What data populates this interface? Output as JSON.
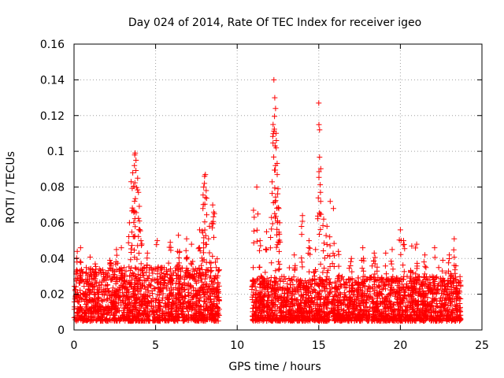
{
  "chart_data": {
    "type": "scatter",
    "title": "Day 024 of 2014, Rate Of TEC Index for receiver igeo",
    "xlabel": "GPS time / hours",
    "ylabel": "ROTI / TECUs",
    "xlim": [
      0,
      25
    ],
    "ylim": [
      0,
      0.16
    ],
    "grid": true,
    "marker": "+",
    "x_ticks": [
      0,
      5,
      10,
      15,
      20,
      25
    ],
    "x_tick_labels": [
      "0",
      "5",
      "10",
      "15",
      "20",
      "25"
    ],
    "y_ticks": [
      0,
      0.02,
      0.04,
      0.06,
      0.08,
      0.1,
      0.12,
      0.14,
      0.16
    ],
    "y_tick_labels": [
      "0",
      "0.02",
      "0.04",
      "0.06",
      "0.08",
      "0.1",
      "0.12",
      "0.14",
      "0.16"
    ],
    "series": [
      {
        "name": "ROTI",
        "color": "#ff0000",
        "description": "Dense ROTI samples, mostly 0.005-0.035 TECU/min, two observation windows (about 0-8.9 h and 10.9-23.7 h)",
        "segments": [
          {
            "start": 0.0,
            "end": 8.9,
            "base_low": 0.005,
            "base_high": 0.035
          },
          {
            "start": 10.9,
            "end": 23.7,
            "base_low": 0.005,
            "base_high": 0.03
          }
        ],
        "peaks": [
          {
            "x": 0.2,
            "y": 0.044
          },
          {
            "x": 0.4,
            "y": 0.046
          },
          {
            "x": 1.3,
            "y": 0.037
          },
          {
            "x": 2.2,
            "y": 0.039
          },
          {
            "x": 2.6,
            "y": 0.045
          },
          {
            "x": 2.9,
            "y": 0.046
          },
          {
            "x": 3.4,
            "y": 0.06
          },
          {
            "x": 3.5,
            "y": 0.083
          },
          {
            "x": 3.6,
            "y": 0.088
          },
          {
            "x": 3.7,
            "y": 0.092
          },
          {
            "x": 3.72,
            "y": 0.098
          },
          {
            "x": 3.75,
            "y": 0.099
          },
          {
            "x": 3.8,
            "y": 0.095
          },
          {
            "x": 3.9,
            "y": 0.085
          },
          {
            "x": 3.95,
            "y": 0.077
          },
          {
            "x": 4.0,
            "y": 0.061
          },
          {
            "x": 4.1,
            "y": 0.05
          },
          {
            "x": 4.5,
            "y": 0.043
          },
          {
            "x": 5.1,
            "y": 0.05
          },
          {
            "x": 5.9,
            "y": 0.049
          },
          {
            "x": 6.4,
            "y": 0.053
          },
          {
            "x": 6.9,
            "y": 0.051
          },
          {
            "x": 7.2,
            "y": 0.048
          },
          {
            "x": 7.7,
            "y": 0.056
          },
          {
            "x": 7.9,
            "y": 0.068
          },
          {
            "x": 7.95,
            "y": 0.08
          },
          {
            "x": 8.0,
            "y": 0.086
          },
          {
            "x": 8.05,
            "y": 0.087
          },
          {
            "x": 8.1,
            "y": 0.078
          },
          {
            "x": 8.3,
            "y": 0.058
          },
          {
            "x": 8.5,
            "y": 0.07
          },
          {
            "x": 8.6,
            "y": 0.065
          },
          {
            "x": 11.0,
            "y": 0.067
          },
          {
            "x": 11.2,
            "y": 0.08
          },
          {
            "x": 11.4,
            "y": 0.05
          },
          {
            "x": 11.8,
            "y": 0.055
          },
          {
            "x": 12.1,
            "y": 0.063
          },
          {
            "x": 12.2,
            "y": 0.115
          },
          {
            "x": 12.25,
            "y": 0.14
          },
          {
            "x": 12.3,
            "y": 0.13
          },
          {
            "x": 12.35,
            "y": 0.124
          },
          {
            "x": 12.4,
            "y": 0.106
          },
          {
            "x": 12.45,
            "y": 0.087
          },
          {
            "x": 12.5,
            "y": 0.079
          },
          {
            "x": 12.55,
            "y": 0.068
          },
          {
            "x": 12.6,
            "y": 0.06
          },
          {
            "x": 13.5,
            "y": 0.042
          },
          {
            "x": 14.0,
            "y": 0.064
          },
          {
            "x": 14.4,
            "y": 0.05
          },
          {
            "x": 14.8,
            "y": 0.045
          },
          {
            "x": 15.0,
            "y": 0.127
          },
          {
            "x": 15.05,
            "y": 0.112
          },
          {
            "x": 15.1,
            "y": 0.077
          },
          {
            "x": 15.3,
            "y": 0.062
          },
          {
            "x": 15.5,
            "y": 0.058
          },
          {
            "x": 15.7,
            "y": 0.072
          },
          {
            "x": 15.9,
            "y": 0.068
          },
          {
            "x": 16.2,
            "y": 0.044
          },
          {
            "x": 17.0,
            "y": 0.04
          },
          {
            "x": 17.7,
            "y": 0.046
          },
          {
            "x": 18.4,
            "y": 0.043
          },
          {
            "x": 19.1,
            "y": 0.043
          },
          {
            "x": 19.5,
            "y": 0.045
          },
          {
            "x": 20.0,
            "y": 0.056
          },
          {
            "x": 20.2,
            "y": 0.05
          },
          {
            "x": 20.7,
            "y": 0.047
          },
          {
            "x": 21.0,
            "y": 0.048
          },
          {
            "x": 21.5,
            "y": 0.042
          },
          {
            "x": 22.1,
            "y": 0.046
          },
          {
            "x": 22.6,
            "y": 0.039
          },
          {
            "x": 23.0,
            "y": 0.042
          },
          {
            "x": 23.3,
            "y": 0.051
          }
        ]
      }
    ]
  }
}
